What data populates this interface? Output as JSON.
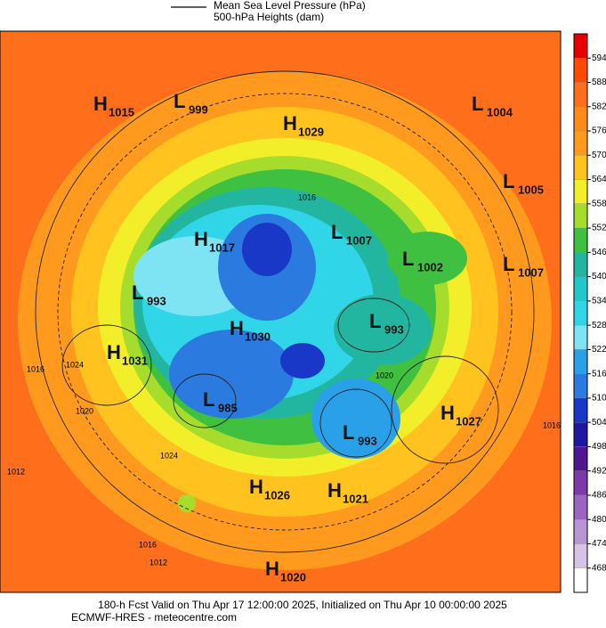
{
  "legend": {
    "entries": [
      "Mean Sea Level Pressure (hPa)",
      "500-hPa Heights (dam)"
    ]
  },
  "colorbar": {
    "labels": [
      594,
      588,
      582,
      576,
      570,
      564,
      558,
      552,
      546,
      540,
      534,
      528,
      522,
      516,
      510,
      504,
      498,
      492,
      486,
      480,
      474,
      468
    ]
  },
  "pressure_centers": [
    {
      "letter": "H",
      "value": 1015
    },
    {
      "letter": "L",
      "value": 999
    },
    {
      "letter": "H",
      "value": 1029
    },
    {
      "letter": "L",
      "value": 1004
    },
    {
      "letter": "L",
      "value": 1005
    },
    {
      "letter": "L",
      "value": 1007
    },
    {
      "letter": "H",
      "value": 1017
    },
    {
      "letter": "L",
      "value": 1002
    },
    {
      "letter": "L",
      "value": 1007
    },
    {
      "letter": "L",
      "value": 993
    },
    {
      "letter": "L",
      "value": 993
    },
    {
      "letter": "H",
      "value": 1030
    },
    {
      "letter": "H",
      "value": 1031
    },
    {
      "letter": "L",
      "value": 985
    },
    {
      "letter": "H",
      "value": 1027
    },
    {
      "letter": "L",
      "value": 993
    },
    {
      "letter": "H",
      "value": 1026
    },
    {
      "letter": "H",
      "value": 1021
    },
    {
      "letter": "H",
      "value": 1020
    }
  ],
  "isobar_labels": [
    1016,
    1016,
    1024,
    1020,
    1012,
    1024,
    1016,
    1012,
    1016,
    1020
  ],
  "footer": {
    "line1": "180-h Fcst Valid on Thu Apr 17 12:00:00 2025, Initialized on Thu Apr 10 00:00:00 2025",
    "line2": "ECMWF-HRES  - meteocentre.com"
  }
}
